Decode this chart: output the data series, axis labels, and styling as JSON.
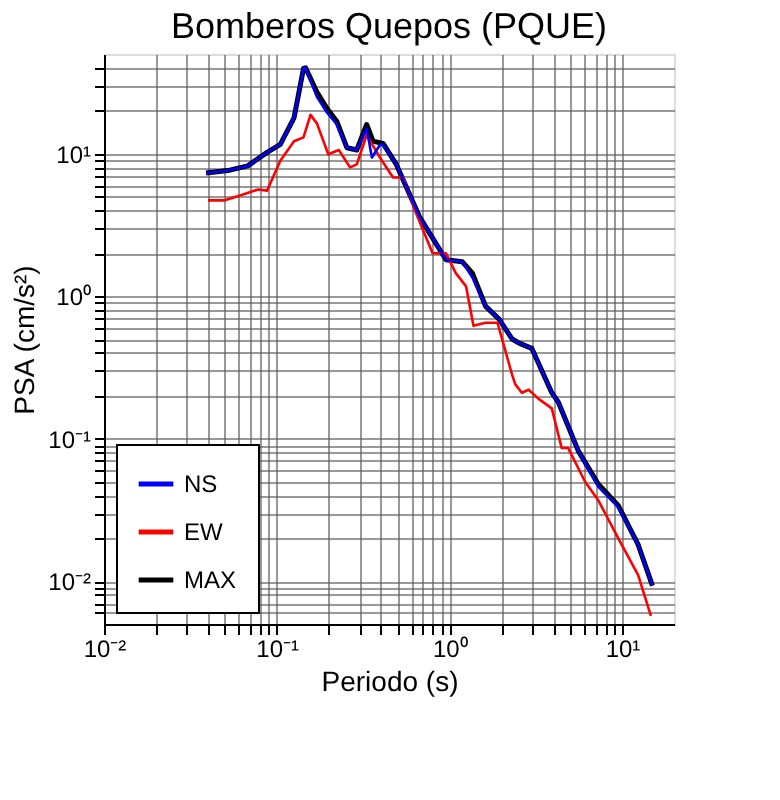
{
  "chart_data": {
    "type": "line",
    "title": "Bomberos Quepos (PQUE)",
    "xlabel": "Periodo (s)",
    "ylabel": "PSA (cm/s²)",
    "log": "xy",
    "grid": true,
    "legend": "bottom left",
    "line_style": "solid",
    "marker": "none",
    "xlim": [
      0.01,
      20
    ],
    "ylim": [
      0.005,
      50
    ],
    "xticks": [
      {
        "value": 0.01,
        "label": "10⁻²"
      },
      {
        "value": 0.02,
        "label": null
      },
      {
        "value": 0.03,
        "label": null
      },
      {
        "value": 0.04,
        "label": null
      },
      {
        "value": 0.05,
        "label": null
      },
      {
        "value": 0.06,
        "label": null
      },
      {
        "value": 0.07,
        "label": null
      },
      {
        "value": 0.08,
        "label": null
      },
      {
        "value": 0.09,
        "label": null
      },
      {
        "value": 0.1,
        "label": "10⁻¹"
      },
      {
        "value": 0.2,
        "label": null
      },
      {
        "value": 0.3,
        "label": null
      },
      {
        "value": 0.4,
        "label": null
      },
      {
        "value": 0.5,
        "label": null
      },
      {
        "value": 0.6,
        "label": null
      },
      {
        "value": 0.7,
        "label": null
      },
      {
        "value": 0.8,
        "label": null
      },
      {
        "value": 0.9,
        "label": null
      },
      {
        "value": 1,
        "label": "10⁰"
      },
      {
        "value": 2,
        "label": null
      },
      {
        "value": 3,
        "label": null
      },
      {
        "value": 4,
        "label": null
      },
      {
        "value": 5,
        "label": null
      },
      {
        "value": 6,
        "label": null
      },
      {
        "value": 7,
        "label": null
      },
      {
        "value": 8,
        "label": null
      },
      {
        "value": 9,
        "label": null
      },
      {
        "value": 10,
        "label": "10¹"
      }
    ],
    "yticks": [
      {
        "value": 0.006,
        "label": null
      },
      {
        "value": 0.007,
        "label": null
      },
      {
        "value": 0.008,
        "label": null
      },
      {
        "value": 0.009,
        "label": null
      },
      {
        "value": 0.01,
        "label": "10⁻²"
      },
      {
        "value": 0.02,
        "label": null
      },
      {
        "value": 0.03,
        "label": null
      },
      {
        "value": 0.04,
        "label": null
      },
      {
        "value": 0.05,
        "label": null
      },
      {
        "value": 0.06,
        "label": null
      },
      {
        "value": 0.07,
        "label": null
      },
      {
        "value": 0.08,
        "label": null
      },
      {
        "value": 0.09,
        "label": null
      },
      {
        "value": 0.1,
        "label": "10⁻¹"
      },
      {
        "value": 0.2,
        "label": null
      },
      {
        "value": 0.3,
        "label": null
      },
      {
        "value": 0.4,
        "label": null
      },
      {
        "value": 0.5,
        "label": null
      },
      {
        "value": 0.6,
        "label": null
      },
      {
        "value": 0.7,
        "label": null
      },
      {
        "value": 0.8,
        "label": null
      },
      {
        "value": 0.9,
        "label": null
      },
      {
        "value": 1,
        "label": "10⁰"
      },
      {
        "value": 2,
        "label": null
      },
      {
        "value": 3,
        "label": null
      },
      {
        "value": 4,
        "label": null
      },
      {
        "value": 5,
        "label": null
      },
      {
        "value": 6,
        "label": null
      },
      {
        "value": 7,
        "label": null
      },
      {
        "value": 8,
        "label": null
      },
      {
        "value": 9,
        "label": null
      },
      {
        "value": 10,
        "label": "10¹"
      },
      {
        "value": 20,
        "label": null
      },
      {
        "value": 30,
        "label": null
      },
      {
        "value": 40,
        "label": null
      }
    ],
    "series": [
      {
        "name": "NS",
        "color": "#0000ff",
        "x": [
          0.039,
          0.052,
          0.068,
          0.088,
          0.105,
          0.126,
          0.143,
          0.147,
          0.171,
          0.195,
          0.223,
          0.255,
          0.291,
          0.332,
          0.356,
          0.396,
          0.413,
          0.493,
          0.672,
          0.956,
          1.19,
          1.36,
          1.62,
          1.94,
          2.31,
          2.52,
          3.0,
          3.92,
          4.28,
          5.58,
          7.28,
          9.5,
          12.4,
          15
        ],
        "values": [
          7.3,
          7.6,
          8.2,
          10.2,
          11.6,
          17.8,
          39.6,
          40,
          25,
          19.5,
          16,
          11,
          10.6,
          15,
          9.4,
          11.5,
          11.6,
          8.4,
          3.6,
          1.8,
          1.74,
          1.35,
          0.85,
          0.69,
          0.5,
          0.47,
          0.43,
          0.21,
          0.18,
          0.082,
          0.046,
          0.033,
          0.018,
          0.0093
        ]
      },
      {
        "name": "EW",
        "color": "#ff0000",
        "x": [
          0.04,
          0.05,
          0.062,
          0.078,
          0.088,
          0.105,
          0.126,
          0.143,
          0.157,
          0.171,
          0.199,
          0.229,
          0.266,
          0.291,
          0.332,
          0.396,
          0.472,
          0.54,
          0.643,
          0.8,
          0.956,
          1.09,
          1.25,
          1.38,
          1.62,
          1.9,
          2.31,
          2.41,
          2.63,
          2.88,
          3.29,
          3.92,
          4.47,
          4.87,
          6.1,
          7.28,
          9.5,
          12.4,
          14.7
        ],
        "values": [
          4.7,
          4.7,
          5.1,
          5.6,
          5.5,
          8.9,
          12.2,
          13,
          18.7,
          16.3,
          9.9,
          10.6,
          8,
          8.4,
          13.5,
          9.4,
          6.8,
          6.8,
          3.8,
          2.0,
          2.0,
          1.45,
          1.17,
          0.62,
          0.65,
          0.65,
          0.28,
          0.24,
          0.21,
          0.22,
          0.19,
          0.163,
          0.086,
          0.086,
          0.05,
          0.037,
          0.02,
          0.011,
          0.0057
        ]
      },
      {
        "name": "MAX",
        "color": "#000000",
        "x": [
          0.039,
          0.052,
          0.068,
          0.088,
          0.105,
          0.126,
          0.143,
          0.147,
          0.171,
          0.195,
          0.223,
          0.255,
          0.291,
          0.332,
          0.362,
          0.413,
          0.493,
          0.672,
          0.956,
          1.19,
          1.36,
          1.62,
          1.94,
          2.31,
          2.52,
          3.0,
          3.92,
          4.28,
          5.58,
          7.28,
          9.5,
          12.4,
          15
        ],
        "values": [
          7.3,
          7.6,
          8.2,
          10.2,
          11.6,
          17.8,
          39.6,
          40,
          27,
          20.9,
          16.8,
          11,
          10.6,
          16,
          12.2,
          11.8,
          8.4,
          3.6,
          1.8,
          1.74,
          1.45,
          0.85,
          0.69,
          0.5,
          0.47,
          0.43,
          0.21,
          0.18,
          0.082,
          0.048,
          0.034,
          0.018,
          0.0093
        ]
      }
    ]
  }
}
